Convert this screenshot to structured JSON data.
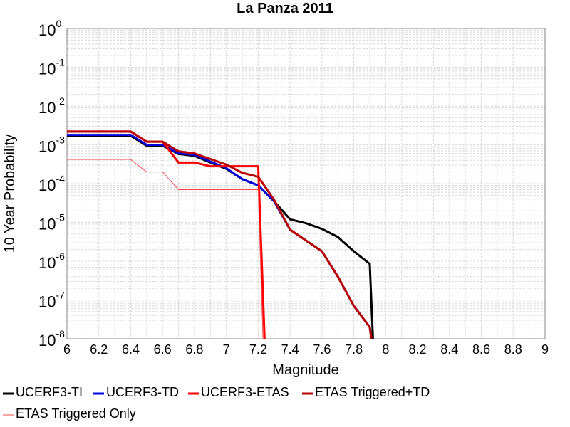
{
  "chart_data": {
    "type": "line",
    "title": "La Panza 2011",
    "xlabel": "Magnitude",
    "ylabel": "10 Year Probability",
    "xlim": [
      6,
      9
    ],
    "ylim": [
      1e-08,
      1
    ],
    "yscale": "log",
    "grid": true,
    "legend_position": "bottom",
    "x_ticks": [
      "6",
      "6.2",
      "6.4",
      "6.6",
      "6.8",
      "7",
      "7.2",
      "7.4",
      "7.6",
      "7.8",
      "8",
      "8.2",
      "8.4",
      "8.6",
      "8.8",
      "9"
    ],
    "y_ticks": [
      {
        "base": "10",
        "exp": "0"
      },
      {
        "base": "10",
        "exp": "-1"
      },
      {
        "base": "10",
        "exp": "-2"
      },
      {
        "base": "10",
        "exp": "-3"
      },
      {
        "base": "10",
        "exp": "-4"
      },
      {
        "base": "10",
        "exp": "-5"
      },
      {
        "base": "10",
        "exp": "-6"
      },
      {
        "base": "10",
        "exp": "-7"
      },
      {
        "base": "10",
        "exp": "-8"
      }
    ],
    "series": [
      {
        "name": "UCERF3-TI",
        "color": "#000000",
        "width": 3,
        "x": [
          6.0,
          6.4,
          6.5,
          6.6,
          6.7,
          6.8,
          6.9,
          7.0,
          7.1,
          7.2,
          7.3,
          7.4,
          7.5,
          7.6,
          7.7,
          7.8,
          7.9,
          7.92
        ],
        "y": [
          0.0017,
          0.0017,
          0.00095,
          0.00095,
          0.00058,
          0.00052,
          0.00035,
          0.00024,
          0.00013,
          9e-05,
          3.5e-05,
          1.2e-05,
          9.5e-06,
          6.8e-06,
          4.2e-06,
          1.8e-06,
          8.5e-07,
          1e-08
        ]
      },
      {
        "name": "UCERF3-TD",
        "color": "#0000dd",
        "width": 3,
        "x": [
          6.0,
          6.4,
          6.5,
          6.6,
          6.7,
          6.8,
          6.9,
          7.0,
          7.1,
          7.2,
          7.3,
          7.4,
          7.6,
          7.7,
          7.8,
          7.9,
          7.91
        ],
        "y": [
          0.0018,
          0.0018,
          0.001,
          0.001,
          0.0006,
          0.00055,
          0.00037,
          0.00025,
          0.00013,
          9e-05,
          3.5e-05,
          6.5e-06,
          1.8e-06,
          4e-07,
          7e-08,
          2e-08,
          1e-08
        ]
      },
      {
        "name": "UCERF3-ETAS",
        "color": "#ff0000",
        "width": 3,
        "x": [
          6.0,
          6.4,
          6.5,
          6.6,
          6.7,
          6.8,
          6.9,
          7.0,
          7.1,
          7.2,
          7.24
        ],
        "y": [
          0.0022,
          0.0022,
          0.0012,
          0.0012,
          0.00035,
          0.00035,
          0.00028,
          0.00028,
          0.00028,
          0.00028,
          1e-08
        ]
      },
      {
        "name": "ETAS Triggered+TD",
        "color": "#bb0000",
        "width": 3,
        "x": [
          6.0,
          6.4,
          6.5,
          6.6,
          6.7,
          6.8,
          6.9,
          7.0,
          7.1,
          7.2,
          7.3,
          7.4,
          7.6,
          7.7,
          7.8,
          7.9,
          7.91
        ],
        "y": [
          0.0022,
          0.0022,
          0.0012,
          0.0012,
          0.00068,
          0.0006,
          0.00043,
          0.00031,
          0.00019,
          0.00015,
          3.8e-05,
          6.5e-06,
          1.8e-06,
          4e-07,
          7e-08,
          2e-08,
          1e-08
        ]
      },
      {
        "name": "ETAS Triggered Only",
        "color": "#ff4444",
        "width": 1,
        "x": [
          6.0,
          6.4,
          6.5,
          6.6,
          6.7,
          6.8,
          6.9,
          7.0,
          7.1,
          7.2,
          7.23
        ],
        "y": [
          0.00042,
          0.00042,
          0.0002,
          0.0002,
          7e-05,
          7e-05,
          7e-05,
          7e-05,
          7e-05,
          7e-05,
          1e-08
        ]
      }
    ]
  }
}
